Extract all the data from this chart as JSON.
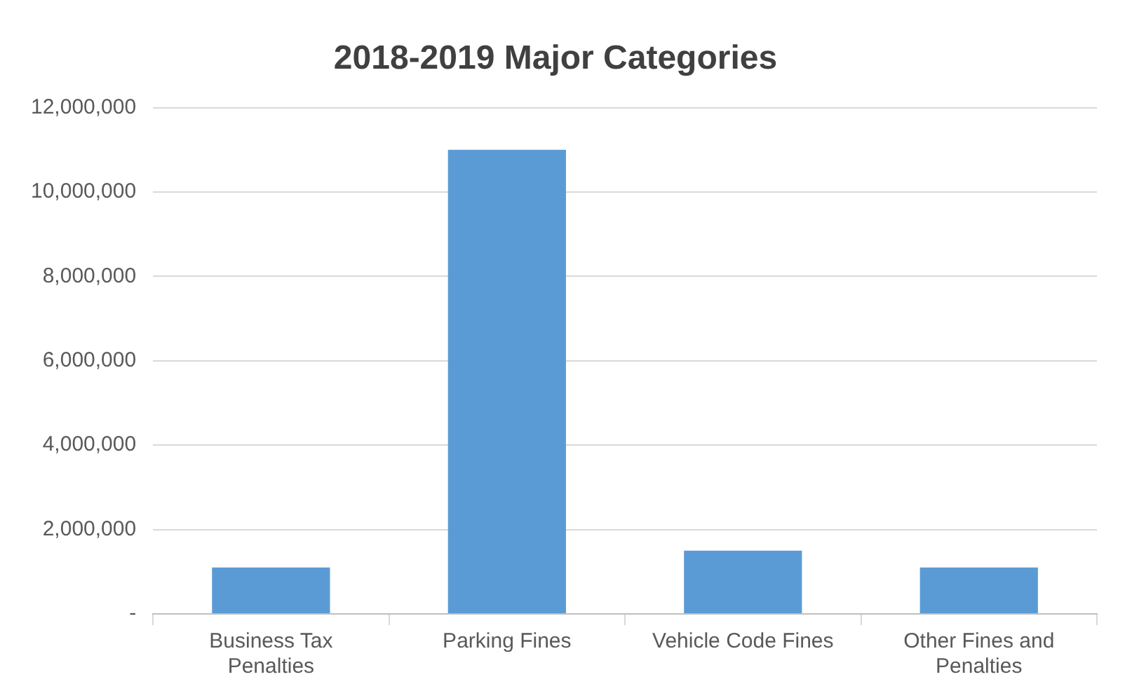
{
  "chart_data": {
    "type": "bar",
    "title": "2018-2019 Major Categories",
    "categories": [
      "Business Tax Penalties",
      "Parking Fines",
      "Vehicle Code Fines",
      "Other Fines and Penalties"
    ],
    "values": [
      1100000,
      11000000,
      1500000,
      1100000
    ],
    "color": "#5b9bd5",
    "ylim": [
      0,
      12000000
    ],
    "yticks": [
      {
        "value": 0,
        "label": "-"
      },
      {
        "value": 2000000,
        "label": "2,000,000"
      },
      {
        "value": 4000000,
        "label": "4,000,000"
      },
      {
        "value": 6000000,
        "label": "6,000,000"
      },
      {
        "value": 8000000,
        "label": "8,000,000"
      },
      {
        "value": 10000000,
        "label": "10,000,000"
      },
      {
        "value": 12000000,
        "label": "12,000,000"
      }
    ],
    "grid": "y"
  }
}
